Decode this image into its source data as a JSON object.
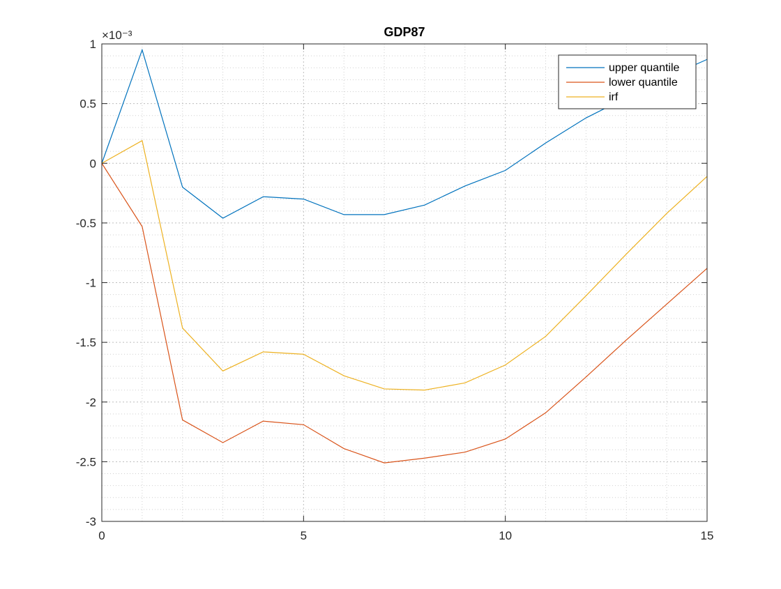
{
  "chart_data": {
    "type": "line",
    "title": "GDP87",
    "xlabel": "",
    "ylabel": "",
    "xlim": [
      0,
      15
    ],
    "ylim": [
      -3,
      1
    ],
    "y_exponent_label": "×10⁻³",
    "x_ticks": [
      0,
      5,
      10,
      15
    ],
    "x_tick_labels": [
      "0",
      "5",
      "10",
      "15"
    ],
    "y_ticks": [
      -3,
      -2.5,
      -2,
      -1.5,
      -1,
      -0.5,
      0,
      0.5,
      1
    ],
    "y_tick_labels": [
      "-3",
      "-2.5",
      "-2",
      "-1.5",
      "-1",
      "-0.5",
      "0",
      "0.5",
      "1"
    ],
    "grid": true,
    "minor_grid": true,
    "legend_position": "top-right",
    "x": [
      0,
      1,
      2,
      3,
      4,
      5,
      6,
      7,
      8,
      9,
      10,
      11,
      12,
      13,
      14,
      15
    ],
    "series": [
      {
        "name": "upper quantile",
        "color": "#0072BD",
        "values": [
          0,
          0.95,
          -0.2,
          -0.46,
          -0.28,
          -0.3,
          -0.43,
          -0.43,
          -0.35,
          -0.19,
          -0.06,
          0.17,
          0.38,
          0.55,
          0.72,
          0.87
        ]
      },
      {
        "name": "lower quantile",
        "color": "#D95319",
        "values": [
          0,
          -0.53,
          -2.15,
          -2.34,
          -2.16,
          -2.19,
          -2.39,
          -2.51,
          -2.47,
          -2.42,
          -2.31,
          -2.09,
          -1.79,
          -1.48,
          -1.18,
          -0.88
        ]
      },
      {
        "name": "irf",
        "color": "#EDB120",
        "values": [
          0,
          0.19,
          -1.38,
          -1.74,
          -1.58,
          -1.6,
          -1.78,
          -1.89,
          -1.9,
          -1.84,
          -1.69,
          -1.45,
          -1.11,
          -0.76,
          -0.42,
          -0.11
        ]
      }
    ]
  }
}
